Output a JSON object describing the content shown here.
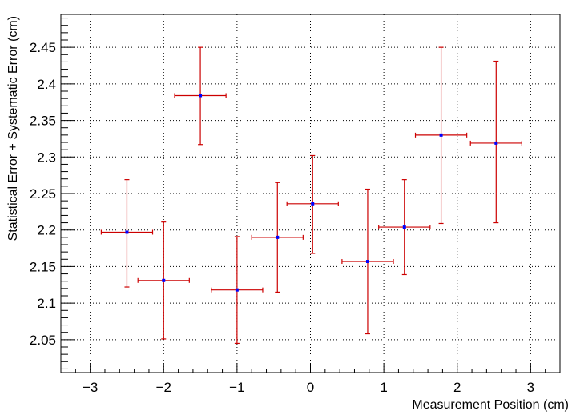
{
  "chart_data": {
    "type": "scatter",
    "xlabel": "Measurement Position (cm)",
    "ylabel": "Statistical Error + Systematic Error (cm)",
    "xlim": [
      -3.4,
      3.4
    ],
    "ylim": [
      2.005,
      2.495
    ],
    "x_ticks": [
      -3,
      -2,
      -1,
      0,
      1,
      2,
      3
    ],
    "x_tick_labels": [
      "−3",
      "−2",
      "−1",
      "0",
      "1",
      "2",
      "3"
    ],
    "y_ticks": [
      2.05,
      2.1,
      2.15,
      2.2,
      2.25,
      2.3,
      2.35,
      2.4,
      2.45
    ],
    "y_tick_labels": [
      "2.05",
      "2.1",
      "2.15",
      "2.2",
      "2.25",
      "2.3",
      "2.35",
      "2.4",
      "2.45"
    ],
    "grid": true,
    "grid_style": "dotted",
    "marker_color": "#0000ff",
    "error_bar_color": "#cc0000",
    "points": [
      {
        "x": -2.5,
        "y": 2.197,
        "x_err": 0.35,
        "y_low": 2.122,
        "y_high": 2.269
      },
      {
        "x": -2.0,
        "y": 2.131,
        "x_err": 0.35,
        "y_low": 2.051,
        "y_high": 2.211
      },
      {
        "x": -1.5,
        "y": 2.384,
        "x_err": 0.35,
        "y_low": 2.317,
        "y_high": 2.45
      },
      {
        "x": -1.0,
        "y": 2.118,
        "x_err": 0.35,
        "y_low": 2.045,
        "y_high": 2.191
      },
      {
        "x": -0.45,
        "y": 2.19,
        "x_err": 0.35,
        "y_low": 2.115,
        "y_high": 2.265
      },
      {
        "x": 0.03,
        "y": 2.236,
        "x_err": 0.35,
        "y_low": 2.168,
        "y_high": 2.302
      },
      {
        "x": 0.78,
        "y": 2.157,
        "x_err": 0.35,
        "y_low": 2.058,
        "y_high": 2.256
      },
      {
        "x": 1.28,
        "y": 2.204,
        "x_err": 0.35,
        "y_low": 2.139,
        "y_high": 2.269
      },
      {
        "x": 1.78,
        "y": 2.33,
        "x_err": 0.35,
        "y_low": 2.209,
        "y_high": 2.45
      },
      {
        "x": 2.53,
        "y": 2.319,
        "x_err": 0.35,
        "y_low": 2.21,
        "y_high": 2.431
      }
    ]
  }
}
